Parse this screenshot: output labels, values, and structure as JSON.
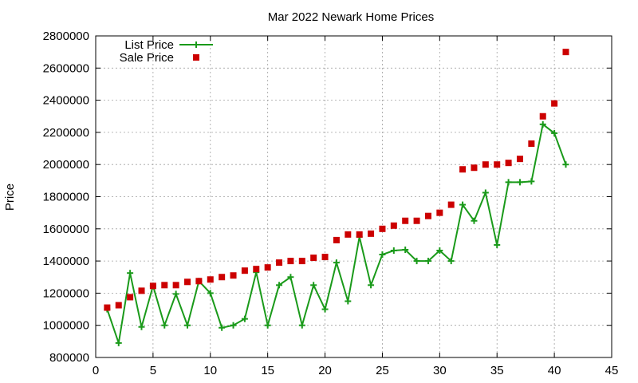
{
  "chart_data": {
    "type": "line",
    "title": "Mar 2022 Newark Home Prices",
    "xlabel": "",
    "ylabel": "Price",
    "xlim": [
      0,
      45
    ],
    "ylim": [
      800000,
      2800000
    ],
    "x_ticks": [
      0,
      5,
      10,
      15,
      20,
      25,
      30,
      35,
      40,
      45
    ],
    "y_ticks": [
      800000,
      1000000,
      1200000,
      1400000,
      1600000,
      1800000,
      2000000,
      2200000,
      2400000,
      2600000,
      2800000
    ],
    "grid": true,
    "legend_position": "top-left",
    "series": [
      {
        "name": "List Price",
        "style": "line+cross",
        "color": "#1a9a1a",
        "x": [
          1,
          2,
          3,
          4,
          5,
          6,
          7,
          8,
          9,
          10,
          11,
          12,
          13,
          14,
          15,
          16,
          17,
          18,
          19,
          20,
          21,
          22,
          23,
          24,
          25,
          26,
          27,
          28,
          29,
          30,
          31,
          32,
          33,
          34,
          35,
          36,
          37,
          38,
          39,
          40,
          41
        ],
        "values": [
          1100000,
          890000,
          1325000,
          990000,
          1245000,
          1000000,
          1195000,
          1000000,
          1275000,
          1200000,
          985000,
          1000000,
          1040000,
          1330000,
          1000000,
          1250000,
          1300000,
          1000000,
          1250000,
          1100000,
          1390000,
          1150000,
          1550000,
          1250000,
          1440000,
          1465000,
          1470000,
          1400000,
          1400000,
          1465000,
          1400000,
          1750000,
          1650000,
          1825000,
          1500000,
          1890000,
          1890000,
          1895000,
          2250000,
          2195000,
          2000000
        ]
      },
      {
        "name": "Sale Price",
        "style": "square",
        "color": "#cc0000",
        "x": [
          1,
          2,
          3,
          4,
          5,
          6,
          7,
          8,
          9,
          10,
          11,
          12,
          13,
          14,
          15,
          16,
          17,
          18,
          19,
          20,
          21,
          22,
          23,
          24,
          25,
          26,
          27,
          28,
          29,
          30,
          31,
          32,
          33,
          34,
          35,
          36,
          37,
          38,
          39,
          40,
          41
        ],
        "values": [
          1110000,
          1125000,
          1175000,
          1215000,
          1245000,
          1250000,
          1250000,
          1270000,
          1275000,
          1285000,
          1300000,
          1310000,
          1340000,
          1350000,
          1360000,
          1390000,
          1400000,
          1400000,
          1420000,
          1425000,
          1530000,
          1565000,
          1565000,
          1570000,
          1600000,
          1620000,
          1650000,
          1650000,
          1680000,
          1700000,
          1750000,
          1970000,
          1980000,
          2000000,
          2000000,
          2010000,
          2035000,
          2130000,
          2300000,
          2380000,
          2700000
        ]
      }
    ]
  }
}
